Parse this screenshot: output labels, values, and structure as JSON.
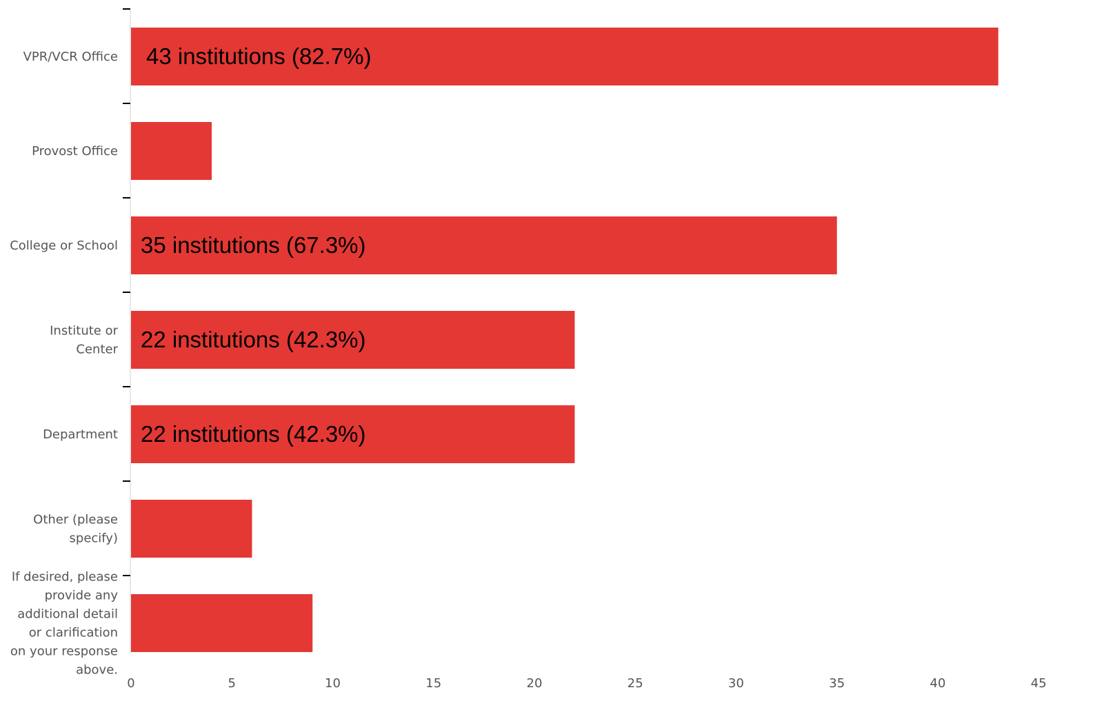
{
  "chart_data": {
    "type": "bar",
    "orientation": "horizontal",
    "categories": [
      "VPR/VCR Office",
      "Provost Office",
      "College or School",
      "Institute or Center",
      "Department",
      "Other (please specify)",
      "If desired, please provide any additional detail or clarification on your response above."
    ],
    "category_lines": [
      [
        "VPR/VCR Office"
      ],
      [
        "Provost Office"
      ],
      [
        "College or School"
      ],
      [
        "Institute or",
        "Center"
      ],
      [
        "Department"
      ],
      [
        "Other (please",
        "specify)"
      ],
      [
        "If desired, please",
        "provide any",
        "additional detail",
        "or clarification",
        "on your response",
        "above."
      ]
    ],
    "values": [
      43,
      4,
      35,
      22,
      22,
      6,
      9
    ],
    "data_labels": [
      "43 institutions (82.7%)",
      "",
      "35 institutions (67.3%)",
      "22 institutions (42.3%)",
      "22 institutions (42.3%)",
      "",
      ""
    ],
    "xlim": [
      0,
      47
    ],
    "xticks": [
      0,
      5,
      10,
      15,
      20,
      25,
      30,
      35,
      40,
      45
    ],
    "bar_color": "#e43835",
    "title": "",
    "xlabel": "",
    "ylabel": "",
    "grid": false,
    "legend": "none"
  }
}
